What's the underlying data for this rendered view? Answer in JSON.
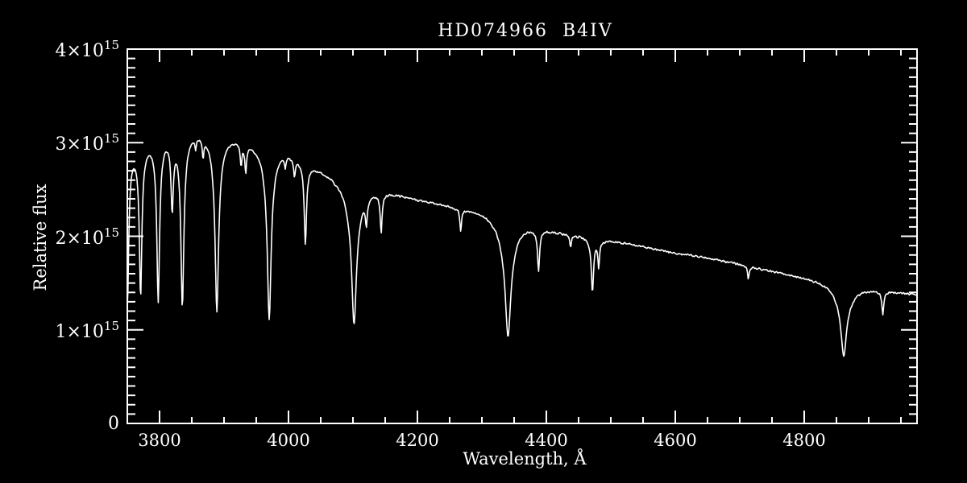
{
  "window": {
    "background_color": "#000000",
    "foreground_color": "#ffffff"
  },
  "chart_data": {
    "type": "line",
    "title": "HD074966  B4IV",
    "star_id": "HD074966",
    "spectral_type": "B4IV",
    "xlabel": "Wavelength, Å",
    "ylabel": "Relative flux",
    "xlim": [
      3750,
      4975
    ],
    "ylim_1e15": [
      0,
      4
    ],
    "grid": false,
    "legend": false,
    "x_major_tick_step": 200,
    "x_minor_tick_step": 50,
    "x_tick_values": [
      3800,
      4000,
      4200,
      4400,
      4600,
      4800
    ],
    "x_tick_labels": [
      "3800",
      "4000",
      "4200",
      "4400",
      "4600",
      "4800"
    ],
    "y_major_tick_values_1e15": [
      4,
      3,
      2,
      1,
      0
    ],
    "y_minor_tick_step_1e15": 0.1,
    "y_tick_labels": [
      {
        "base": "4×10",
        "exp": "15"
      },
      {
        "base": "3×10",
        "exp": "15"
      },
      {
        "base": "2×10",
        "exp": "15"
      },
      {
        "base": "1×10",
        "exp": "15"
      },
      {
        "base": "0",
        "exp": ""
      }
    ],
    "flux_units": "1e15 relative flux",
    "noise_amplitude_1e15": 0.013,
    "continuum_1e15": [
      [
        3750,
        2.95
      ],
      [
        3778,
        3.04
      ],
      [
        3808,
        3.12
      ],
      [
        3831,
        3.14
      ],
      [
        3860,
        3.16
      ],
      [
        3890,
        3.12
      ],
      [
        3920,
        3.07
      ],
      [
        3950,
        3.0
      ],
      [
        3985,
        2.96
      ],
      [
        4000,
        2.92
      ],
      [
        4040,
        2.76
      ],
      [
        4080,
        2.62
      ],
      [
        4130,
        2.52
      ],
      [
        4160,
        2.47
      ],
      [
        4200,
        2.4
      ],
      [
        4250,
        2.33
      ],
      [
        4300,
        2.27
      ],
      [
        4340,
        2.21
      ],
      [
        4380,
        2.12
      ],
      [
        4420,
        2.05
      ],
      [
        4460,
        2.0
      ],
      [
        4500,
        1.95
      ],
      [
        4550,
        1.89
      ],
      [
        4600,
        1.82
      ],
      [
        4650,
        1.77
      ],
      [
        4700,
        1.7
      ],
      [
        4750,
        1.63
      ],
      [
        4800,
        1.56
      ],
      [
        4840,
        1.51
      ],
      [
        4870,
        1.47
      ],
      [
        4900,
        1.44
      ],
      [
        4940,
        1.41
      ],
      [
        4975,
        1.38
      ]
    ],
    "absorption_lines": [
      {
        "name": "H12",
        "center": 3750.2,
        "depth_1e15": 1.65,
        "width_A": 2.2,
        "wing": 0.12
      },
      {
        "name": "H11",
        "center": 3770.6,
        "depth_1e15": 1.6,
        "width_A": 2.2,
        "wing": 0.12
      },
      {
        "name": "H10",
        "center": 3797.9,
        "depth_1e15": 1.74,
        "width_A": 2.4,
        "wing": 0.12
      },
      {
        "name": "He I 3820",
        "center": 3819.6,
        "depth_1e15": 0.75,
        "width_A": 2.0,
        "wing": 0.1
      },
      {
        "name": "H9",
        "center": 3835.4,
        "depth_1e15": 1.85,
        "width_A": 2.6,
        "wing": 0.15
      },
      {
        "name": "Si II 3856",
        "center": 3856.0,
        "depth_1e15": 0.12,
        "width_A": 1.2,
        "wing": 0.1
      },
      {
        "name": "He I 3868",
        "center": 3867.5,
        "depth_1e15": 0.2,
        "width_A": 1.3,
        "wing": 0.1
      },
      {
        "name": "H8",
        "center": 3888.9,
        "depth_1e15": 1.9,
        "width_A": 3.0,
        "wing": 0.2
      },
      {
        "name": "He I 3927",
        "center": 3926.5,
        "depth_1e15": 0.24,
        "width_A": 1.4,
        "wing": 0.1
      },
      {
        "name": "Ca II K",
        "center": 3933.7,
        "depth_1e15": 0.3,
        "width_A": 1.4,
        "wing": 0.1
      },
      {
        "name": "H epsilon",
        "center": 3970.1,
        "depth_1e15": 1.86,
        "width_A": 3.2,
        "wing": 0.22
      },
      {
        "name": "N II 3995",
        "center": 3995.0,
        "depth_1e15": 0.12,
        "width_A": 1.2,
        "wing": 0.1
      },
      {
        "name": "He I 4009",
        "center": 4009.3,
        "depth_1e15": 0.18,
        "width_A": 1.4,
        "wing": 0.1
      },
      {
        "name": "He I 4026",
        "center": 4026.2,
        "depth_1e15": 0.88,
        "width_A": 2.0,
        "wing": 0.1
      },
      {
        "name": "H delta",
        "center": 4101.7,
        "depth_1e15": 1.51,
        "width_A": 4.0,
        "wing": 0.3
      },
      {
        "name": "He I 4121",
        "center": 4120.8,
        "depth_1e15": 0.28,
        "width_A": 1.6,
        "wing": 0.1
      },
      {
        "name": "He I 4144",
        "center": 4143.8,
        "depth_1e15": 0.42,
        "width_A": 1.6,
        "wing": 0.1
      },
      {
        "name": "C II 4267",
        "center": 4267.2,
        "depth_1e15": 0.24,
        "width_A": 1.4,
        "wing": 0.1
      },
      {
        "name": "H gamma",
        "center": 4340.5,
        "depth_1e15": 1.28,
        "width_A": 4.5,
        "wing": 0.35
      },
      {
        "name": "He I 4388",
        "center": 4387.9,
        "depth_1e15": 0.43,
        "width_A": 1.8,
        "wing": 0.1
      },
      {
        "name": "He I 4438",
        "center": 4437.6,
        "depth_1e15": 0.13,
        "width_A": 1.3,
        "wing": 0.1
      },
      {
        "name": "He I 4471",
        "center": 4471.5,
        "depth_1e15": 0.57,
        "width_A": 2.0,
        "wing": 0.1
      },
      {
        "name": "Mg II 4481",
        "center": 4481.2,
        "depth_1e15": 0.28,
        "width_A": 1.4,
        "wing": 0.1
      },
      {
        "name": "He I 4713",
        "center": 4713.2,
        "depth_1e15": 0.13,
        "width_A": 1.3,
        "wing": 0.1
      },
      {
        "name": "H beta",
        "center": 4861.3,
        "depth_1e15": 0.77,
        "width_A": 4.5,
        "wing": 0.35
      },
      {
        "name": "He I 4922",
        "center": 4921.9,
        "depth_1e15": 0.25,
        "width_A": 1.5,
        "wing": 0.1
      }
    ]
  }
}
